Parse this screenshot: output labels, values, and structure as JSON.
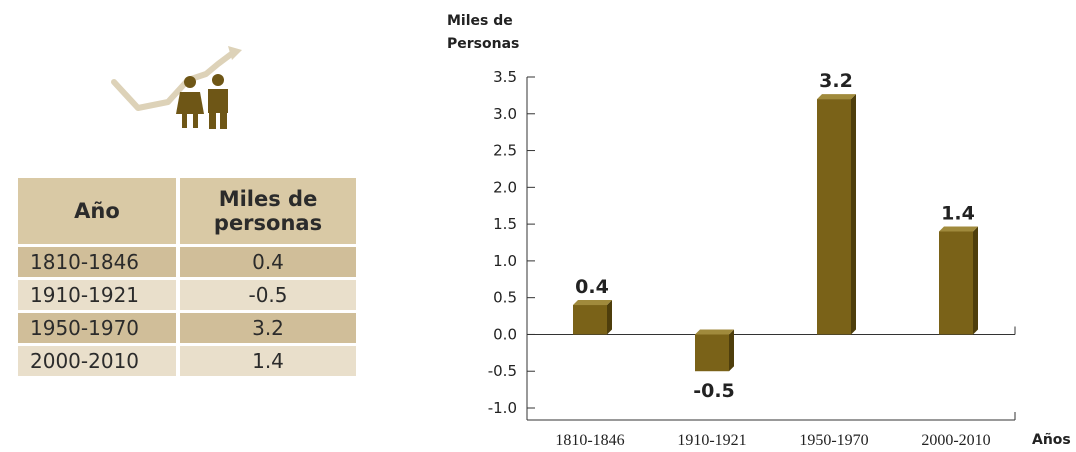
{
  "table": {
    "header_year": "Año",
    "header_value_line1": "Miles de",
    "header_value_line2": "personas",
    "rows": [
      {
        "year": "1810-1846",
        "value": "0.4"
      },
      {
        "year": "1910-1921",
        "value": "-0.5"
      },
      {
        "year": "1950-1970",
        "value": "3.2"
      },
      {
        "year": "2000-2010",
        "value": "1.4"
      }
    ]
  },
  "icon": {
    "name": "population-growth-icon",
    "color": "#6e5616"
  },
  "colors": {
    "bar_front": "#7a6218",
    "bar_side": "#4e3e0c",
    "bar_top": "#a08a3c",
    "table_header": "#d9c9a5",
    "table_row_dark": "#d0be99",
    "table_row_light": "#e9dfcb"
  },
  "chart_data": {
    "type": "bar",
    "ylabel_line1": "Miles de",
    "ylabel_line2": "Personas",
    "xlabel": "Años",
    "categories": [
      "1810-1846",
      "1910-1921",
      "1950-1970",
      "2000-2010"
    ],
    "values": [
      0.4,
      -0.5,
      3.2,
      1.4
    ],
    "value_labels": [
      "0.4",
      "-0.5",
      "3.2",
      "1.4"
    ],
    "ylim": [
      -1.0,
      3.5
    ],
    "yticks": [
      "3.5",
      "3.0",
      "2.5",
      "2.0",
      "1.5",
      "1.0",
      "0.5",
      "0.0",
      "-0.5",
      "-1.0"
    ],
    "ytick_values": [
      3.5,
      3.0,
      2.5,
      2.0,
      1.5,
      1.0,
      0.5,
      0.0,
      -0.5,
      -1.0
    ],
    "grid": false,
    "legend": false
  }
}
